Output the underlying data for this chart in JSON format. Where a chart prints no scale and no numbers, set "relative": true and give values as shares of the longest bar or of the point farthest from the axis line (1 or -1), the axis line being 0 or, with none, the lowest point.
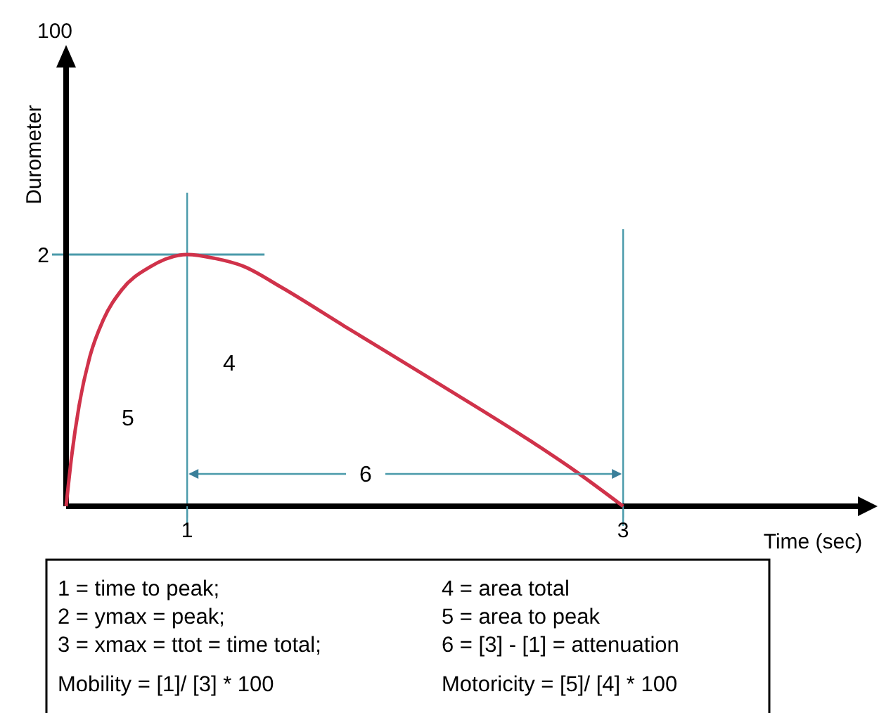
{
  "chart_data": {
    "type": "line",
    "relative": true,
    "ylabel": "Durometer",
    "xlabel": "Time (sec)",
    "xlim": [
      0,
      4.34
    ],
    "xticks": [
      {
        "value": 0.652,
        "label": "1"
      },
      {
        "value": 3,
        "label": "3"
      }
    ],
    "x": [
      0,
      0.03,
      0.07,
      0.13,
      0.2,
      0.3,
      0.45,
      0.652,
      0.8,
      0.95,
      1.159,
      1.5,
      2,
      2.5,
      2.742,
      3
    ],
    "series": [
      {
        "color": "#d0324a",
        "values": [
          0,
          0.2,
          0.4,
          0.6,
          0.74,
          0.86,
          0.95,
          1,
          0.985,
          0.955,
          0.87,
          0.715,
          0.49,
          0.26,
          0.14,
          0
        ]
      }
    ],
    "marker": "none",
    "line_style": "solid",
    "ref_lines": [
      {
        "axis": "y",
        "value": 1,
        "color": "#4a9aaa"
      },
      {
        "axis": "x",
        "value": 0.652,
        "color": "#4a9aaa"
      },
      {
        "axis": "x",
        "value": 3,
        "color": "#4a9aaa"
      }
    ],
    "annotations": [
      "100",
      "2",
      "4",
      "5",
      "6",
      "1 = time to peak;",
      "4 = area total",
      "2 =  ymax =  peak;",
      "5 = area to peak",
      "3 = xmax = ttot =  time total;",
      "6 = [3] - [1] = attenuation",
      "Mobility = [1]/ [3] * 100",
      "Motoricity = [5]/ [4] * 100"
    ]
  }
}
